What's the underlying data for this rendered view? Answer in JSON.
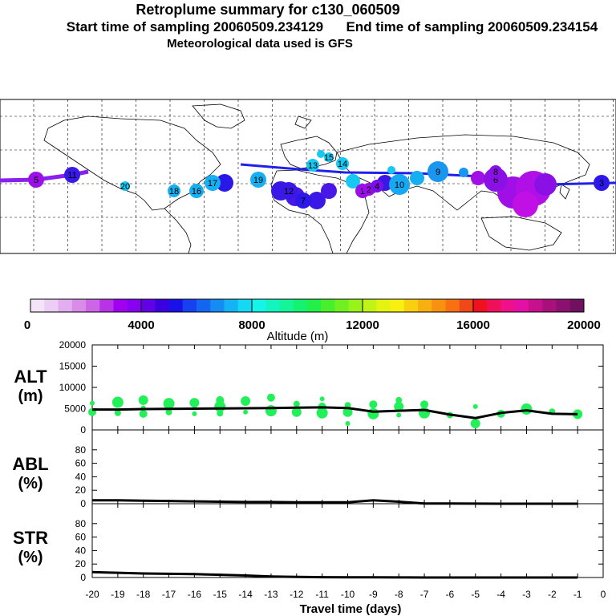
{
  "header": {
    "title": "Retroplume summary for c130_060509",
    "sampling_line": "Start time of sampling 20060509.234129      End time of sampling 20060509.234154",
    "met_line": "Meteorological data used is GFS"
  },
  "colorbar": {
    "label": "Altitude (m)",
    "ticks": [
      "0",
      "4000",
      "8000",
      "12000",
      "16000",
      "20000"
    ],
    "colors": [
      "#f4e4f8",
      "#eccdf4",
      "#e3aef0",
      "#d98be8",
      "#cc66e6",
      "#b833e6",
      "#a100f0",
      "#8800f2",
      "#6200e8",
      "#3a00e0",
      "#1a10e8",
      "#1640f0",
      "#1466f2",
      "#148cf4",
      "#14b4f4",
      "#14d8f4",
      "#14f4e8",
      "#14f4c0",
      "#14f498",
      "#14f270",
      "#22f048",
      "#48f02c",
      "#70f020",
      "#98f418",
      "#c0f414",
      "#e4f410",
      "#f8f010",
      "#f8d010",
      "#f8b010",
      "#f89010",
      "#f87010",
      "#f04818",
      "#f01020",
      "#f0105a",
      "#f0108a",
      "#e410a6",
      "#c8108c",
      "#a8107c",
      "#8c1070",
      "#701060"
    ]
  },
  "map": {
    "labels": [
      {
        "text": "1",
        "color": "#9a10e6"
      },
      {
        "text": "2",
        "color": "#9a10e6"
      },
      {
        "text": "3",
        "color": "#2c18e8"
      },
      {
        "text": "4",
        "color": "#7a10e6"
      },
      {
        "text": "5",
        "color": "#9a10e6"
      },
      {
        "text": "6",
        "color": "#8a10e6"
      },
      {
        "text": "7",
        "color": "#2c18e8"
      },
      {
        "text": "8",
        "color": "#8a10e6"
      },
      {
        "text": "9",
        "color": "#1896f0"
      },
      {
        "text": "10",
        "color": "#16a8f2"
      },
      {
        "text": "11",
        "color": "#3a18e6"
      },
      {
        "text": "12",
        "color": "#3a18e6"
      },
      {
        "text": "13",
        "color": "#16c8f2"
      },
      {
        "text": "14",
        "color": "#16c8f2"
      },
      {
        "text": "15",
        "color": "#16c8f2"
      },
      {
        "text": "16",
        "color": "#16b0f2"
      },
      {
        "text": "17",
        "color": "#16b0f2"
      },
      {
        "text": "18",
        "color": "#16b0f2"
      },
      {
        "text": "19",
        "color": "#16b0f2"
      },
      {
        "text": "20",
        "color": "#16c8f2"
      }
    ]
  },
  "chart_data": {
    "type": "line",
    "xlabel": "Travel time (days)",
    "x_ticks": [
      "-20",
      "-19",
      "-18",
      "-17",
      "-16",
      "-15",
      "-14",
      "-13",
      "-12",
      "-11",
      "-10",
      "-9",
      "-8",
      "-7",
      "-6",
      "-5",
      "-4",
      "-3",
      "-2",
      "-1",
      "0"
    ],
    "x_range": [
      -20,
      0
    ],
    "panels": [
      {
        "name": "ALT",
        "label": [
          "ALT",
          "(m)"
        ],
        "y_range": [
          0,
          20000
        ],
        "y_ticks": [
          "0",
          "5000",
          "10000",
          "15000",
          "20000"
        ],
        "x": [
          -20,
          -19,
          -18,
          -17,
          -16,
          -15,
          -14,
          -13,
          -12,
          -11,
          -10,
          -9,
          -8,
          -7,
          -6,
          -5,
          -4,
          -3,
          -2,
          -1
        ],
        "values": [
          4800,
          4800,
          4900,
          4950,
          5000,
          5050,
          5100,
          5150,
          5250,
          5300,
          5150,
          4300,
          4500,
          4700,
          3600,
          2800,
          4000,
          4600,
          3800,
          3700
        ],
        "scatter_color": "#22f058",
        "scatter_points": [
          [
            -20,
            6300
          ],
          [
            -20,
            4200
          ],
          [
            -19,
            6500
          ],
          [
            -19,
            4000
          ],
          [
            -18,
            7000
          ],
          [
            -18,
            5200
          ],
          [
            -18,
            3800
          ],
          [
            -17,
            6200
          ],
          [
            -17,
            4200
          ],
          [
            -16,
            6400
          ],
          [
            -16,
            3800
          ],
          [
            -15,
            7000
          ],
          [
            -15,
            5500
          ],
          [
            -15,
            3900
          ],
          [
            -14,
            6800
          ],
          [
            -14,
            4200
          ],
          [
            -13,
            7600
          ],
          [
            -13,
            4500
          ],
          [
            -12,
            6100
          ],
          [
            -12,
            4200
          ],
          [
            -11,
            7300
          ],
          [
            -11,
            5500
          ],
          [
            -11,
            4000
          ],
          [
            -10,
            5800
          ],
          [
            -10,
            4200
          ],
          [
            -10,
            1500
          ],
          [
            -9,
            6000
          ],
          [
            -9,
            3800
          ],
          [
            -8,
            7000
          ],
          [
            -8,
            5500
          ],
          [
            -8,
            3500
          ],
          [
            -7,
            6000
          ],
          [
            -7,
            4000
          ],
          [
            -6,
            3500
          ],
          [
            -5,
            1500
          ],
          [
            -5,
            5500
          ],
          [
            -4,
            3800
          ],
          [
            -3,
            4900
          ],
          [
            -2,
            4300
          ],
          [
            -1,
            3700
          ]
        ]
      },
      {
        "name": "ABL",
        "label": [
          "ABL",
          "(%)"
        ],
        "y_range": [
          0,
          100
        ],
        "y_ticks": [
          "0",
          "20",
          "40",
          "60",
          "80"
        ],
        "x": [
          -20,
          -19,
          -18,
          -17,
          -16,
          -15,
          -14,
          -13,
          -12,
          -11,
          -10,
          -9,
          -8,
          -7,
          -6,
          -5,
          -4,
          -3,
          -2,
          -1
        ],
        "values": [
          5,
          5,
          4.5,
          4,
          3.5,
          3,
          2.5,
          2.5,
          2,
          2,
          2,
          5,
          3,
          0.3,
          0.2,
          0.1,
          0,
          0,
          0,
          0
        ]
      },
      {
        "name": "STR",
        "label": [
          "STR",
          "(%)"
        ],
        "y_range": [
          0,
          100
        ],
        "y_ticks": [
          "0",
          "20",
          "40",
          "60",
          "80"
        ],
        "x": [
          -20,
          -19,
          -18,
          -17,
          -16,
          -15,
          -14,
          -13,
          -12,
          -11,
          -10,
          -9,
          -8,
          -7,
          -6,
          -5,
          -4,
          -3,
          -2,
          -1
        ],
        "values": [
          8,
          7,
          6,
          5.5,
          5,
          4,
          3,
          1.5,
          0.8,
          0.5,
          0.3,
          0.2,
          0.1,
          0,
          0,
          0,
          0,
          0,
          0,
          0
        ]
      }
    ]
  }
}
